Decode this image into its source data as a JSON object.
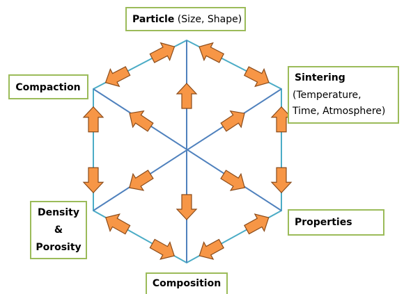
{
  "nodes": [
    {
      "label": "Particle",
      "detail": "(Size, Shape)"
    },
    {
      "label": "Sintering",
      "detail_lines": [
        "(Temperature,",
        "Time, Atmosphere)"
      ]
    },
    {
      "label": "Properties"
    },
    {
      "label": "Composition"
    },
    {
      "label_lines": [
        "Density",
        "&",
        "Porosity"
      ]
    },
    {
      "label": "Compaction"
    }
  ]
}
